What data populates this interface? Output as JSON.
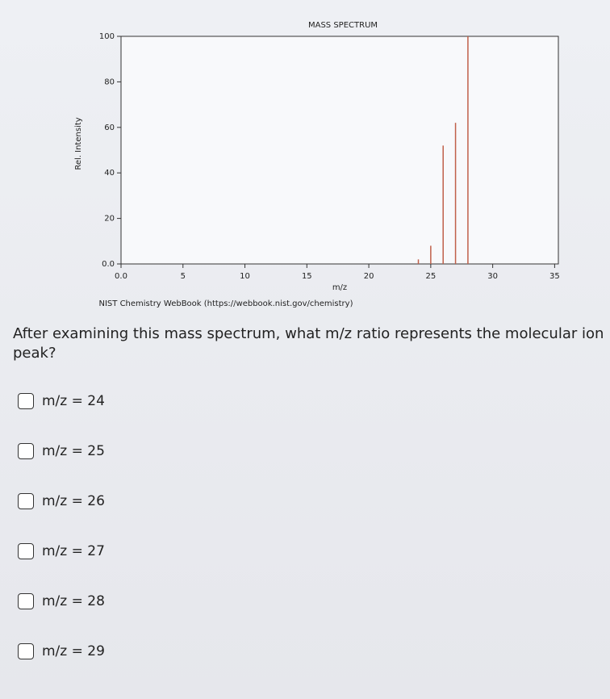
{
  "chart_data": {
    "type": "bar",
    "title": "MASS SPECTRUM",
    "xlabel": "m/z",
    "ylabel": "Rel. Intensity",
    "caption": "NIST Chemistry WebBook (https://webbook.nist.gov/chemistry)",
    "x": [
      24,
      25,
      26,
      27,
      28
    ],
    "values": [
      2,
      8,
      52,
      62,
      100
    ],
    "color": "#c0604a",
    "xlim": [
      0,
      35.3
    ],
    "ylim": [
      0,
      100
    ],
    "xticks": [
      {
        "value": 0,
        "label": "0.0"
      },
      5,
      10,
      15,
      20,
      25,
      30,
      35
    ],
    "yticks": [
      {
        "value": 0,
        "label": "0.0"
      },
      20,
      40,
      60,
      80,
      100
    ]
  },
  "question": "After examining this mass spectrum, what m/z ratio represents the molecular ion peak?",
  "options": [
    "m/z = 24",
    "m/z = 25",
    "m/z = 26",
    "m/z = 27",
    "m/z = 28",
    "m/z = 29"
  ]
}
